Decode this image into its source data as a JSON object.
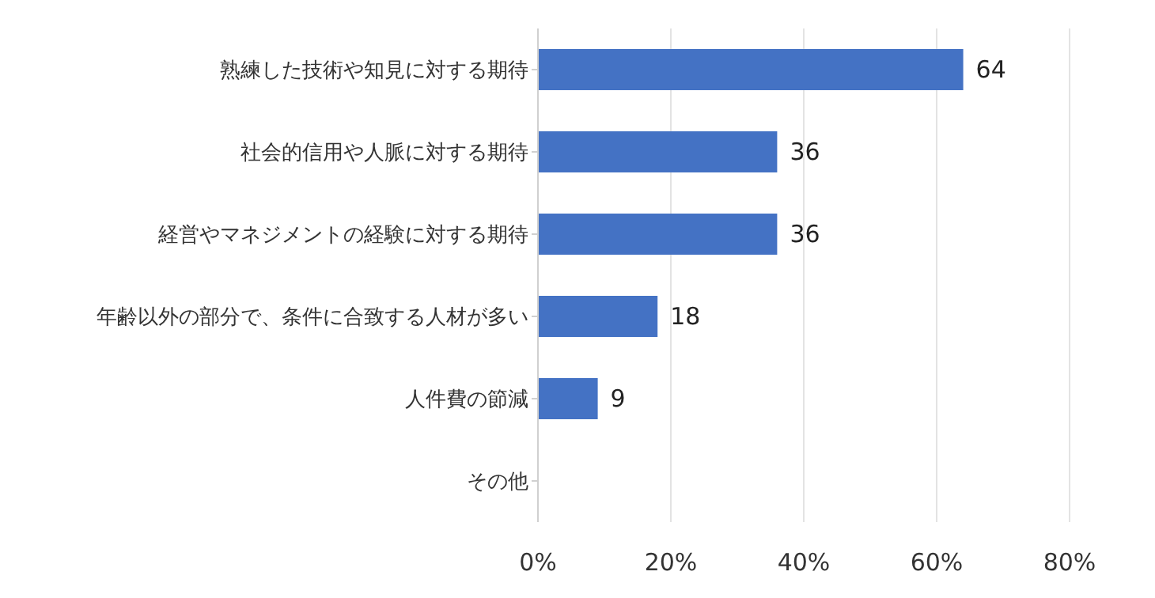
{
  "chart_data": {
    "type": "bar",
    "orientation": "horizontal",
    "categories": [
      "熟練した技術や知見に対する期待",
      "社会的信用や人脈に対する期待",
      "経営やマネジメントの経験に対する期待",
      "年齢以外の部分で、条件に合致する人材が多い",
      "人件費の節減",
      "その他"
    ],
    "values": [
      64,
      36,
      36,
      18,
      9,
      0
    ],
    "value_labels": [
      "64",
      "36",
      "36",
      "18",
      "9",
      null
    ],
    "color": "#4472c4",
    "xlim": [
      0,
      80
    ],
    "xticks": [
      {
        "value": 0,
        "label": "0%"
      },
      {
        "value": 20,
        "label": "20%"
      },
      {
        "value": 40,
        "label": "40%"
      },
      {
        "value": 60,
        "label": "60%"
      },
      {
        "value": 80,
        "label": "80%"
      }
    ],
    "grid": "x"
  }
}
